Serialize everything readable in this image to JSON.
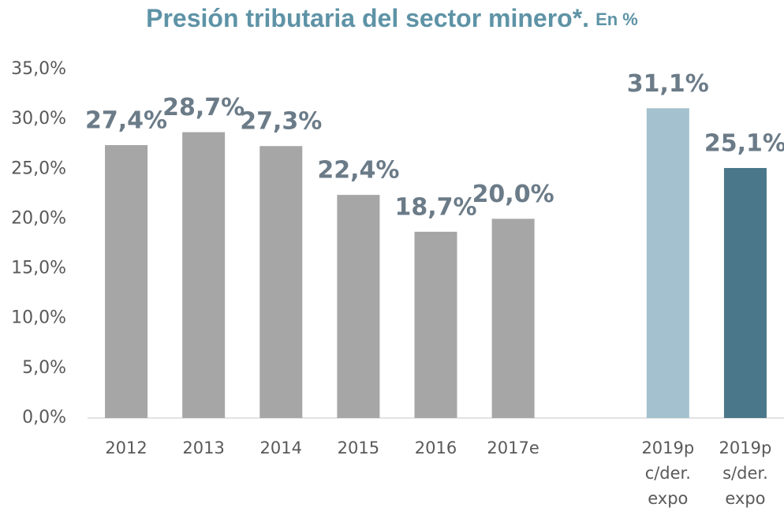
{
  "chart_data": {
    "type": "bar",
    "title": "Presión tributaria del sector minero*.",
    "subtitle": "En %",
    "categories": [
      "2012",
      "2013",
      "2014",
      "2015",
      "2016",
      "2017e",
      null,
      "2019p c/der. expo",
      "2019p s/der. expo"
    ],
    "values": [
      27.4,
      28.7,
      27.3,
      22.4,
      18.7,
      20.0,
      null,
      31.1,
      25.1
    ],
    "value_labels": [
      "27,4%",
      "28,7%",
      "27,3%",
      "22,4%",
      "18,7%",
      "20,0%",
      null,
      "31,1%",
      "25,1%"
    ],
    "colors": [
      "#a6a6a6",
      "#a6a6a6",
      "#a6a6a6",
      "#a6a6a6",
      "#a6a6a6",
      "#a6a6a6",
      null,
      "#a3c1ce",
      "#4a7789"
    ],
    "ylim": [
      0,
      35
    ],
    "yticks": [
      {
        "value": 0,
        "label": "0,0%"
      },
      {
        "value": 5,
        "label": "5,0%"
      },
      {
        "value": 10,
        "label": "10,0%"
      },
      {
        "value": 15,
        "label": "15,0%"
      },
      {
        "value": 20,
        "label": "20,0%"
      },
      {
        "value": 25,
        "label": "25,0%"
      },
      {
        "value": 30,
        "label": "30,0%"
      },
      {
        "value": 35,
        "label": "35,0%"
      }
    ],
    "grid": false
  }
}
